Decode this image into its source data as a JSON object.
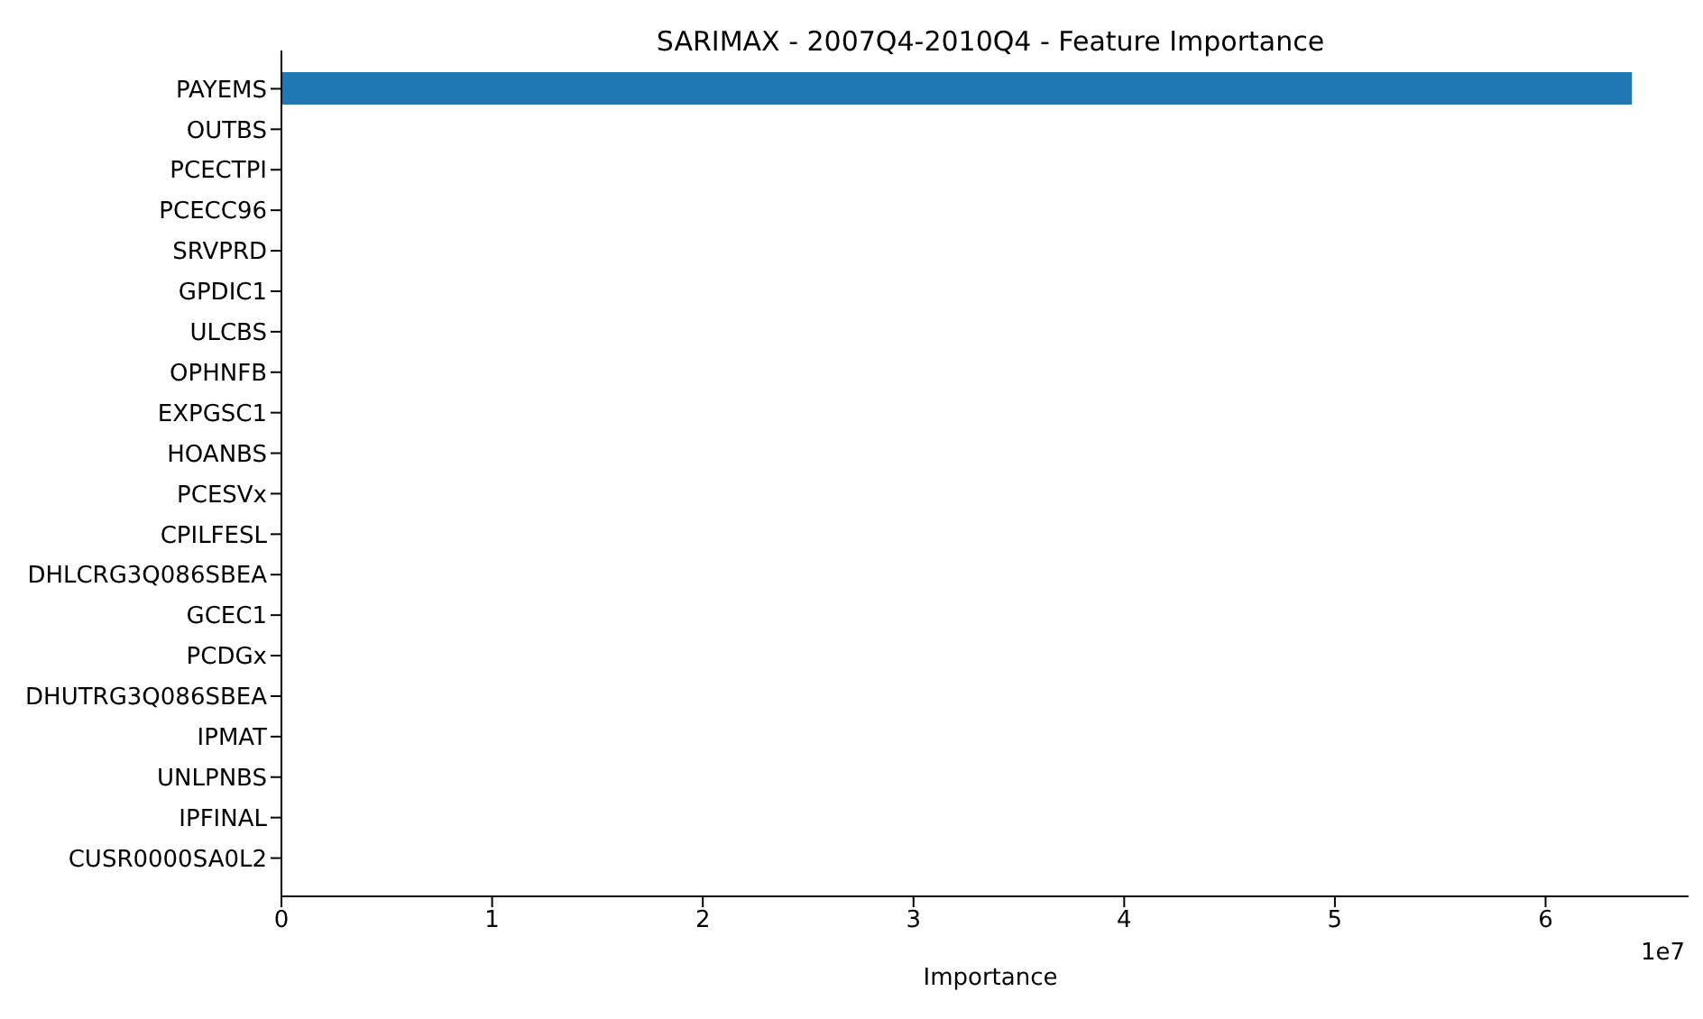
{
  "chart_data": {
    "type": "bar",
    "orientation": "horizontal",
    "title": "SARIMAX - 2007Q4-2010Q4 - Feature Importance",
    "xlabel": "Importance",
    "categories": [
      "PAYEMS",
      "OUTBS",
      "PCECTPI",
      "PCECC96",
      "SRVPRD",
      "GPDIC1",
      "ULCBS",
      "OPHNFB",
      "EXPGSC1",
      "HOANBS",
      "PCESVx",
      "CPILFESL",
      "DHLCRG3Q086SBEA",
      "GCEC1",
      "PCDGx",
      "DHUTRG3Q086SBEA",
      "IPMAT",
      "UNLPNBS",
      "IPFINAL",
      "CUSR0000SA0L2"
    ],
    "values": [
      6.41,
      0,
      0,
      0,
      0,
      0,
      0,
      0,
      0,
      0,
      0,
      0,
      0,
      0,
      0,
      0,
      0,
      0,
      0,
      0
    ],
    "color": "#1f77b4",
    "xlim": [
      0,
      6.73
    ],
    "xticks": [
      0,
      1,
      2,
      3,
      4,
      5,
      6
    ],
    "annotations": [
      "1e7"
    ],
    "grid": false,
    "legend": false
  }
}
